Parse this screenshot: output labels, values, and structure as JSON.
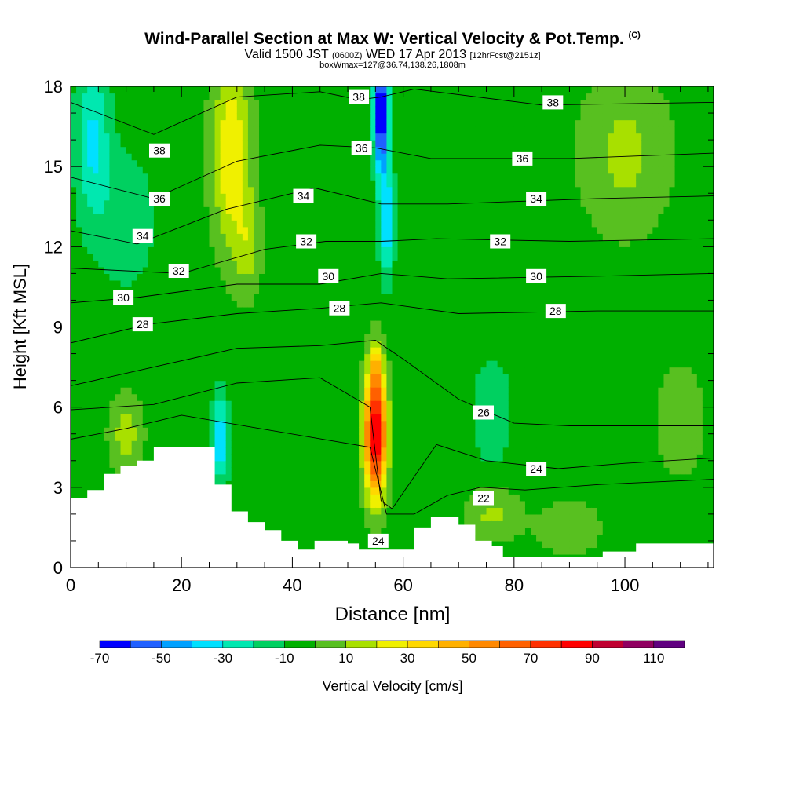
{
  "title": {
    "main": "Wind-Parallel Section at Max W: Vertical Velocity & Pot.Temp.",
    "copyright": "(C)",
    "valid_prefix": "Valid 1500 JST",
    "valid_utc": "(0600Z)",
    "valid_date": "WED 17 Apr 2013",
    "forecast": "[12hrFcst@2151z]",
    "box": "boxWmax=127@36.74,138.26,1808m"
  },
  "chart_data": {
    "type": "heatmap",
    "xlabel": "Distance [nm]",
    "ylabel": "Height [Kft MSL]",
    "xlim": [
      0,
      116
    ],
    "ylim": [
      0,
      18
    ],
    "x_ticks": [
      0,
      20,
      40,
      60,
      80,
      100
    ],
    "y_ticks": [
      0,
      3,
      6,
      9,
      12,
      15,
      18
    ],
    "grid": false,
    "colorbar": {
      "label": "Vertical Velocity [cm/s]",
      "tick_labels": [
        -70,
        -50,
        -30,
        -10,
        10,
        30,
        50,
        70,
        90,
        110
      ],
      "bins": [
        {
          "from": -70,
          "to": -60,
          "color": "#0000ff"
        },
        {
          "from": -60,
          "to": -50,
          "color": "#2060ff"
        },
        {
          "from": -50,
          "to": -40,
          "color": "#00a0ff"
        },
        {
          "from": -40,
          "to": -30,
          "color": "#00e0ff"
        },
        {
          "from": -30,
          "to": -20,
          "color": "#00e8b0"
        },
        {
          "from": -20,
          "to": -10,
          "color": "#00d060"
        },
        {
          "from": -10,
          "to": 0,
          "color": "#00b000"
        },
        {
          "from": 0,
          "to": 10,
          "color": "#58c020"
        },
        {
          "from": 10,
          "to": 20,
          "color": "#a8e000"
        },
        {
          "from": 20,
          "to": 30,
          "color": "#f0f000"
        },
        {
          "from": 30,
          "to": 40,
          "color": "#ffd800"
        },
        {
          "from": 40,
          "to": 50,
          "color": "#ffb000"
        },
        {
          "from": 50,
          "to": 60,
          "color": "#ff8800"
        },
        {
          "from": 60,
          "to": 70,
          "color": "#ff6000"
        },
        {
          "from": 70,
          "to": 80,
          "color": "#ff3000"
        },
        {
          "from": 80,
          "to": 90,
          "color": "#ff0000"
        },
        {
          "from": 90,
          "to": 100,
          "color": "#c00030"
        },
        {
          "from": 100,
          "to": 110,
          "color": "#900060"
        },
        {
          "from": 110,
          "to": 120,
          "color": "#600080"
        }
      ]
    },
    "vertical_velocity_features": [
      {
        "x": 55,
        "y": 5.0,
        "sx": 2.0,
        "sy": 2.3,
        "value": 95
      },
      {
        "x": 55,
        "y": 7.5,
        "sx": 1.2,
        "sy": 1.0,
        "value": 20
      },
      {
        "x": 29,
        "y": 15.5,
        "sx": 3.5,
        "sy": 3.5,
        "value": 30
      },
      {
        "x": 32,
        "y": 12.0,
        "sx": 2.5,
        "sy": 1.8,
        "value": 12
      },
      {
        "x": 56,
        "y": 17.0,
        "sx": 1.3,
        "sy": 2.2,
        "value": -75
      },
      {
        "x": 57,
        "y": 13.0,
        "sx": 1.3,
        "sy": 2.0,
        "value": -40
      },
      {
        "x": 27,
        "y": 4.8,
        "sx": 1.5,
        "sy": 1.6,
        "value": -40
      },
      {
        "x": 4,
        "y": 16.0,
        "sx": 3.0,
        "sy": 3.0,
        "value": -32
      },
      {
        "x": 10,
        "y": 13.0,
        "sx": 5.0,
        "sy": 2.5,
        "value": -18
      },
      {
        "x": 76,
        "y": 5.8,
        "sx": 3.5,
        "sy": 2.0,
        "value": -18
      },
      {
        "x": 100,
        "y": 15.5,
        "sx": 8.0,
        "sy": 3.0,
        "value": 13
      },
      {
        "x": 10,
        "y": 5.0,
        "sx": 3.0,
        "sy": 1.5,
        "value": 15
      },
      {
        "x": 76,
        "y": 2.0,
        "sx": 5.0,
        "sy": 1.0,
        "value": 12
      },
      {
        "x": 90,
        "y": 1.5,
        "sx": 6.0,
        "sy": 1.0,
        "value": 8
      },
      {
        "x": 110,
        "y": 5.5,
        "sx": 5.0,
        "sy": 2.5,
        "value": 5
      },
      {
        "x": 40,
        "y": 3.0,
        "sx": 4.0,
        "sy": 2.5,
        "value": -5
      }
    ],
    "background_vertical_velocity": -5,
    "terrain": [
      {
        "x": 0,
        "h": 2.6
      },
      {
        "x": 3,
        "h": 2.9
      },
      {
        "x": 6,
        "h": 3.5
      },
      {
        "x": 9,
        "h": 3.8
      },
      {
        "x": 12,
        "h": 4.0
      },
      {
        "x": 15,
        "h": 4.5
      },
      {
        "x": 18,
        "h": 4.5
      },
      {
        "x": 21,
        "h": 4.5
      },
      {
        "x": 23,
        "h": 4.5
      },
      {
        "x": 26,
        "h": 3.1
      },
      {
        "x": 29,
        "h": 2.1
      },
      {
        "x": 32,
        "h": 1.7
      },
      {
        "x": 35,
        "h": 1.4
      },
      {
        "x": 38,
        "h": 1.0
      },
      {
        "x": 41,
        "h": 0.7
      },
      {
        "x": 44,
        "h": 1.0
      },
      {
        "x": 47,
        "h": 1.0
      },
      {
        "x": 50,
        "h": 0.9
      },
      {
        "x": 52,
        "h": 0.7
      },
      {
        "x": 62,
        "h": 1.5
      },
      {
        "x": 65,
        "h": 1.9
      },
      {
        "x": 70,
        "h": 1.6
      },
      {
        "x": 73,
        "h": 1.0
      },
      {
        "x": 76,
        "h": 0.8
      },
      {
        "x": 78,
        "h": 0.4
      },
      {
        "x": 82,
        "h": 0.4
      },
      {
        "x": 90,
        "h": 0.4
      },
      {
        "x": 96,
        "h": 0.6
      },
      {
        "x": 102,
        "h": 0.9
      },
      {
        "x": 110,
        "h": 0.9
      },
      {
        "x": 116,
        "h": 0.9
      }
    ],
    "potential_temperature_contours": [
      {
        "label": "38",
        "points": [
          [
            0,
            17.4
          ],
          [
            15,
            16.2
          ],
          [
            30,
            17.6
          ],
          [
            45,
            17.8
          ],
          [
            52,
            17.5
          ],
          [
            56,
            17.6
          ],
          [
            62,
            17.9
          ],
          [
            85,
            17.3
          ],
          [
            116,
            17.4
          ]
        ]
      },
      {
        "label": "36",
        "points": [
          [
            0,
            14.6
          ],
          [
            15,
            13.8
          ],
          [
            30,
            15.2
          ],
          [
            45,
            15.8
          ],
          [
            55,
            15.7
          ],
          [
            65,
            15.3
          ],
          [
            90,
            15.3
          ],
          [
            116,
            15.5
          ]
        ]
      },
      {
        "label": "34",
        "points": [
          [
            0,
            12.6
          ],
          [
            12,
            12.1
          ],
          [
            28,
            13.4
          ],
          [
            44,
            14.2
          ],
          [
            56,
            13.6
          ],
          [
            68,
            13.6
          ],
          [
            95,
            13.8
          ],
          [
            116,
            13.9
          ]
        ]
      },
      {
        "label": "32",
        "points": [
          [
            0,
            11.2
          ],
          [
            20,
            11.0
          ],
          [
            35,
            11.9
          ],
          [
            46,
            12.2
          ],
          [
            56,
            12.2
          ],
          [
            66,
            12.3
          ],
          [
            90,
            12.2
          ],
          [
            116,
            12.3
          ]
        ]
      },
      {
        "label": "30",
        "points": [
          [
            0,
            9.9
          ],
          [
            12,
            10.1
          ],
          [
            30,
            10.6
          ],
          [
            45,
            10.6
          ],
          [
            56,
            11.0
          ],
          [
            68,
            10.8
          ],
          [
            95,
            10.9
          ],
          [
            116,
            11.0
          ]
        ]
      },
      {
        "label": "28",
        "points": [
          [
            0,
            8.4
          ],
          [
            14,
            9.1
          ],
          [
            30,
            9.5
          ],
          [
            45,
            9.7
          ],
          [
            56,
            9.9
          ],
          [
            70,
            9.5
          ],
          [
            95,
            9.6
          ],
          [
            116,
            9.6
          ]
        ]
      },
      {
        "label": "26",
        "points": [
          [
            0,
            6.8
          ],
          [
            15,
            7.5
          ],
          [
            30,
            8.2
          ],
          [
            45,
            8.3
          ],
          [
            55,
            8.5
          ],
          [
            60,
            7.8
          ],
          [
            70,
            6.3
          ],
          [
            80,
            5.4
          ],
          [
            90,
            5.3
          ],
          [
            100,
            5.3
          ],
          [
            116,
            5.3
          ]
        ]
      },
      {
        "label": "24",
        "points": [
          [
            0,
            5.9
          ],
          [
            15,
            6.1
          ],
          [
            30,
            6.9
          ],
          [
            45,
            7.1
          ],
          [
            54,
            6.0
          ],
          [
            56,
            2.5
          ],
          [
            58,
            2.2
          ],
          [
            66,
            4.6
          ],
          [
            75,
            4.0
          ],
          [
            88,
            3.7
          ],
          [
            100,
            3.9
          ],
          [
            116,
            4.1
          ]
        ]
      },
      {
        "label": "22",
        "points": [
          [
            0,
            4.8
          ],
          [
            10,
            5.2
          ],
          [
            20,
            5.7
          ],
          [
            54,
            4.5
          ],
          [
            57,
            2.0
          ],
          [
            62,
            2.0
          ],
          [
            68,
            2.7
          ],
          [
            74,
            3.0
          ],
          [
            82,
            2.9
          ],
          [
            95,
            3.1
          ],
          [
            116,
            3.3
          ]
        ]
      }
    ],
    "contour_labels": [
      {
        "text": "38",
        "x": 52,
        "y": 17.6
      },
      {
        "text": "38",
        "x": 16,
        "y": 15.6
      },
      {
        "text": "38",
        "x": 87,
        "y": 17.4
      },
      {
        "text": "36",
        "x": 52.5,
        "y": 15.7
      },
      {
        "text": "36",
        "x": 16,
        "y": 13.8
      },
      {
        "text": "36",
        "x": 81.5,
        "y": 15.3
      },
      {
        "text": "34",
        "x": 42,
        "y": 13.9
      },
      {
        "text": "34",
        "x": 13,
        "y": 12.4
      },
      {
        "text": "34",
        "x": 84,
        "y": 13.8
      },
      {
        "text": "32",
        "x": 42.5,
        "y": 12.2
      },
      {
        "text": "32",
        "x": 19.5,
        "y": 11.1
      },
      {
        "text": "32",
        "x": 77.5,
        "y": 12.2
      },
      {
        "text": "30",
        "x": 46.5,
        "y": 10.9
      },
      {
        "text": "30",
        "x": 9.5,
        "y": 10.1
      },
      {
        "text": "30",
        "x": 84,
        "y": 10.9
      },
      {
        "text": "28",
        "x": 48.5,
        "y": 9.7
      },
      {
        "text": "28",
        "x": 13,
        "y": 9.1
      },
      {
        "text": "28",
        "x": 87.5,
        "y": 9.6
      },
      {
        "text": "26",
        "x": 74.5,
        "y": 5.8
      },
      {
        "text": "24",
        "x": 84,
        "y": 3.7
      },
      {
        "text": "24",
        "x": 55.5,
        "y": 1.0
      },
      {
        "text": "22",
        "x": 74.5,
        "y": 2.6
      }
    ]
  }
}
